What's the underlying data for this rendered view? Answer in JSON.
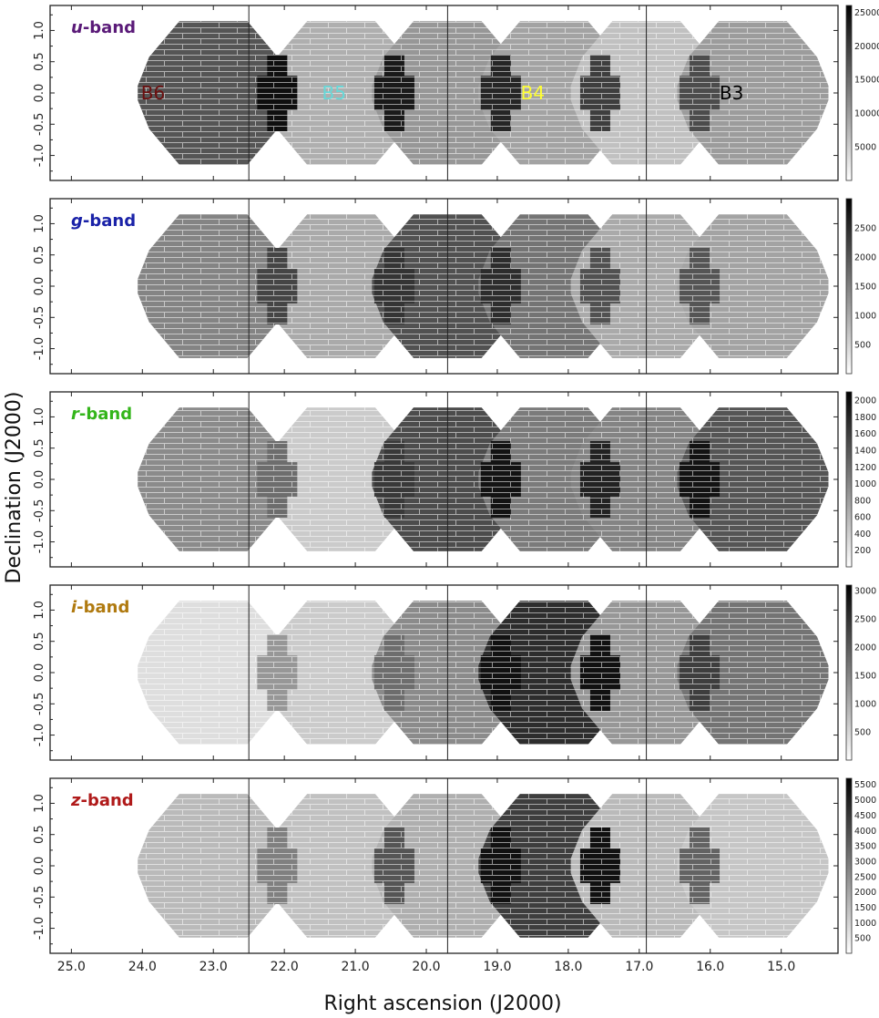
{
  "figure": {
    "xlabel": "Right ascension (J2000)",
    "ylabel": "Declination (J2000)"
  },
  "chart_data": {
    "type": "heatmap",
    "xlabel": "Right ascension (J2000)",
    "ylabel": "Declination (J2000)",
    "xlim": [
      25.3,
      14.2
    ],
    "ylim": [
      -1.4,
      1.4
    ],
    "x_ticks": [
      "25.0",
      "24.0",
      "23.0",
      "22.0",
      "21.0",
      "20.0",
      "19.0",
      "18.0",
      "17.0",
      "16.0",
      "15.0"
    ],
    "y_ticks": [
      "1.0",
      "0.5",
      "0.0",
      "-0.5",
      "-1.0"
    ],
    "vlines_ra": [
      22.5,
      19.7,
      16.9
    ],
    "field_centers_ra": [
      23.0,
      21.2,
      19.7,
      18.2,
      16.9,
      15.4
    ],
    "field_labels": [
      {
        "text": "B6",
        "ra": 23.85,
        "dec": 0.0,
        "color": "#6b0f0f"
      },
      {
        "text": "B5",
        "ra": 21.3,
        "dec": 0.0,
        "color": "#66d9d9"
      },
      {
        "text": "B4",
        "ra": 18.5,
        "dec": 0.0,
        "color": "#ffff33"
      },
      {
        "text": "B3",
        "ra": 15.7,
        "dec": 0.0,
        "color": "#000000"
      }
    ],
    "panels": [
      {
        "band_prefix": "u",
        "band_suffix": "-band",
        "color": "#5a1a78",
        "colorbar_ticks": [
          "25000",
          "20000",
          "15000",
          "10000",
          "5000"
        ],
        "colorbar_values": [
          25000,
          20000,
          15000,
          10000,
          5000
        ],
        "vmin": 0,
        "vmax": 26000,
        "field_levels": [
          0.68,
          0.3,
          0.4,
          0.35,
          0.22,
          0.38
        ],
        "overlap_levels": [
          0.98,
          0.93,
          0.88,
          0.78,
          0.72
        ]
      },
      {
        "band_prefix": "g",
        "band_suffix": "-band",
        "color": "#1a22a8",
        "colorbar_ticks": [
          "2500",
          "2000",
          "1500",
          "1000",
          "500"
        ],
        "colorbar_values": [
          2500,
          2000,
          1500,
          1000,
          500
        ],
        "vmin": 0,
        "vmax": 3000,
        "field_levels": [
          0.48,
          0.32,
          0.7,
          0.55,
          0.32,
          0.35
        ],
        "overlap_levels": [
          0.75,
          0.82,
          0.85,
          0.7,
          0.68
        ]
      },
      {
        "band_prefix": "r",
        "band_suffix": "-band",
        "color": "#33b51a",
        "colorbar_ticks": [
          "2000",
          "1800",
          "1600",
          "1400",
          "1200",
          "1000",
          "800",
          "600",
          "400",
          "200"
        ],
        "colorbar_values": [
          2000,
          1800,
          1600,
          1400,
          1200,
          1000,
          800,
          600,
          400,
          200
        ],
        "vmin": 0,
        "vmax": 2100,
        "field_levels": [
          0.45,
          0.18,
          0.72,
          0.52,
          0.48,
          0.68
        ],
        "overlap_levels": [
          0.58,
          0.8,
          0.96,
          0.9,
          0.96
        ]
      },
      {
        "band_prefix": "i",
        "band_suffix": "-band",
        "color": "#b07a10",
        "colorbar_ticks": [
          "3000",
          "2500",
          "2000",
          "1500",
          "1000",
          "500"
        ],
        "colorbar_values": [
          3000,
          2500,
          2000,
          1500,
          1000,
          500
        ],
        "vmin": 0,
        "vmax": 3100,
        "field_levels": [
          0.1,
          0.18,
          0.45,
          0.85,
          0.4,
          0.55
        ],
        "overlap_levels": [
          0.4,
          0.58,
          0.97,
          0.97,
          0.78
        ]
      },
      {
        "band_prefix": "z",
        "band_suffix": "-band",
        "color": "#b01a1a",
        "colorbar_ticks": [
          "5500",
          "5000",
          "4500",
          "4000",
          "3500",
          "3000",
          "2500",
          "2000",
          "1500",
          "1000",
          "500"
        ],
        "colorbar_values": [
          5500,
          5000,
          4500,
          4000,
          3500,
          3000,
          2500,
          2000,
          1500,
          1000,
          500
        ],
        "vmin": 0,
        "vmax": 5700,
        "field_levels": [
          0.25,
          0.22,
          0.3,
          0.78,
          0.25,
          0.2
        ],
        "overlap_levels": [
          0.5,
          0.68,
          0.97,
          0.97,
          0.62
        ]
      }
    ]
  }
}
